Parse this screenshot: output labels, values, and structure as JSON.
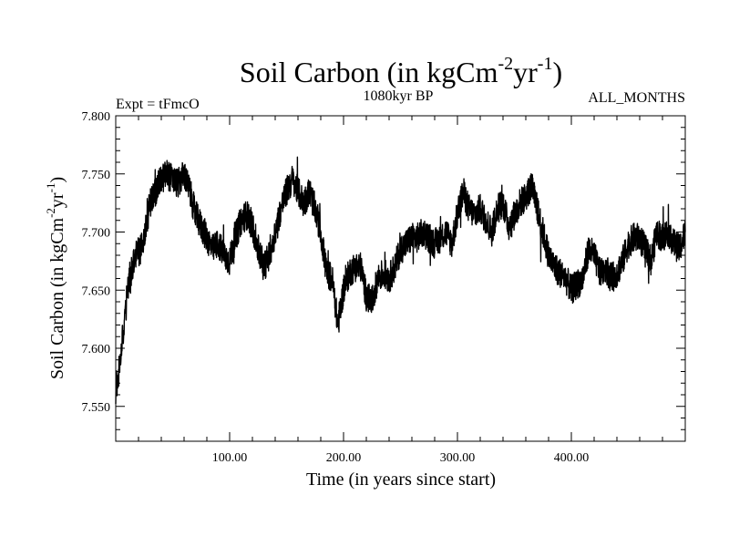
{
  "chart_data": {
    "type": "line",
    "title": {
      "main": "Soil Carbon (in kgCm",
      "sup1": "-2",
      "mid": "yr",
      "sup2": "-1",
      "end": ")"
    },
    "subtitle_left": "Expt = tFmcO",
    "subtitle_center": "1080kyr BP",
    "subtitle_right": "ALL_MONTHS",
    "xlabel": "Time (in years since start)",
    "ylabel": {
      "main": "Soil Carbon (in kgCm",
      "sup1": "-2",
      "mid": "yr",
      "sup2": "-1",
      "end": ")"
    },
    "xlim": [
      0,
      500
    ],
    "ylim": [
      7.52,
      7.8
    ],
    "xticks": [
      100,
      200,
      300,
      400
    ],
    "xtick_labels": [
      "100.00",
      "200.00",
      "300.00",
      "400.00"
    ],
    "yticks": [
      7.55,
      7.6,
      7.65,
      7.7,
      7.75,
      7.8
    ],
    "ytick_labels": [
      "7.550",
      "7.600",
      "7.650",
      "7.700",
      "7.750",
      "7.800"
    ],
    "series": [
      {
        "name": "Soil Carbon",
        "color": "#000000",
        "x": [
          0,
          2,
          4,
          6,
          8,
          10,
          12,
          15,
          18,
          22,
          26,
          30,
          35,
          40,
          45,
          50,
          55,
          60,
          65,
          70,
          75,
          80,
          85,
          90,
          95,
          100,
          105,
          110,
          115,
          120,
          125,
          130,
          135,
          140,
          145,
          150,
          155,
          160,
          165,
          170,
          175,
          180,
          185,
          190,
          195,
          200,
          205,
          210,
          215,
          220,
          225,
          230,
          235,
          240,
          245,
          250,
          255,
          260,
          265,
          270,
          275,
          280,
          285,
          290,
          295,
          300,
          305,
          310,
          315,
          320,
          325,
          330,
          335,
          340,
          345,
          350,
          355,
          360,
          365,
          370,
          375,
          380,
          385,
          390,
          395,
          400,
          405,
          410,
          415,
          420,
          425,
          430,
          435,
          440,
          445,
          450,
          455,
          460,
          465,
          470,
          475,
          480,
          485,
          490,
          495,
          500
        ],
        "values": [
          7.565,
          7.575,
          7.59,
          7.61,
          7.63,
          7.645,
          7.66,
          7.67,
          7.68,
          7.685,
          7.7,
          7.725,
          7.735,
          7.745,
          7.75,
          7.745,
          7.742,
          7.75,
          7.735,
          7.715,
          7.705,
          7.695,
          7.685,
          7.69,
          7.68,
          7.675,
          7.695,
          7.71,
          7.715,
          7.705,
          7.685,
          7.67,
          7.68,
          7.7,
          7.72,
          7.735,
          7.745,
          7.735,
          7.725,
          7.735,
          7.72,
          7.7,
          7.665,
          7.66,
          7.62,
          7.65,
          7.665,
          7.67,
          7.67,
          7.645,
          7.64,
          7.66,
          7.665,
          7.66,
          7.67,
          7.685,
          7.69,
          7.695,
          7.695,
          7.7,
          7.695,
          7.69,
          7.695,
          7.7,
          7.69,
          7.715,
          7.735,
          7.72,
          7.715,
          7.72,
          7.71,
          7.7,
          7.72,
          7.725,
          7.705,
          7.715,
          7.725,
          7.73,
          7.74,
          7.72,
          7.7,
          7.68,
          7.67,
          7.665,
          7.66,
          7.65,
          7.655,
          7.66,
          7.685,
          7.68,
          7.665,
          7.67,
          7.66,
          7.665,
          7.675,
          7.69,
          7.695,
          7.695,
          7.685,
          7.675,
          7.7,
          7.695,
          7.7,
          7.69,
          7.685,
          7.7
        ]
      }
    ]
  }
}
